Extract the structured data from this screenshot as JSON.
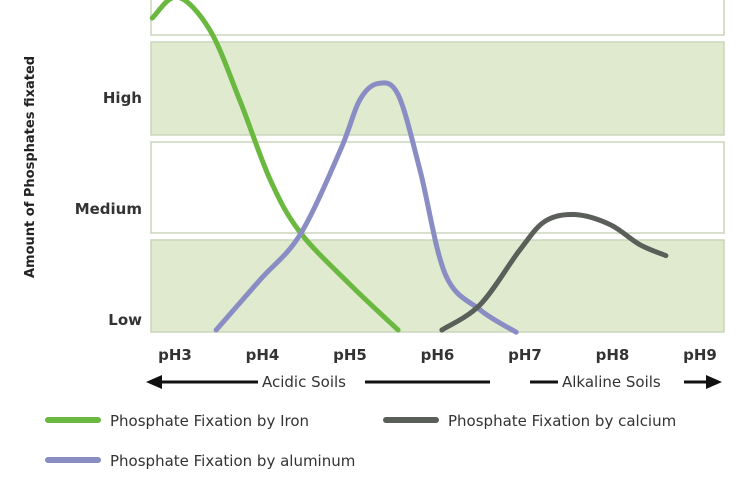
{
  "chart_data": {
    "type": "line",
    "title": "",
    "xlabel": "",
    "ylabel": "Amount of Phosphates fixated",
    "x_ticks": [
      "pH3",
      "pH4",
      "pH5",
      "pH6",
      "pH7",
      "pH8",
      "pH9"
    ],
    "x_tick_values": [
      3,
      4,
      5,
      6,
      7,
      8,
      9
    ],
    "y_ticks": [
      "Low",
      "Medium",
      "High"
    ],
    "y_tick_values": [
      1,
      2,
      3
    ],
    "xlim": [
      2.7,
      9.6
    ],
    "ylim": [
      0.8,
      4.0
    ],
    "bands": "alternating white / light green horizontal bands",
    "annotations": {
      "acidic": "Acidic Soils",
      "alkaline": "Alkaline Soils"
    },
    "legend_placement": "bottom",
    "series": [
      {
        "name": "Phosphate Fixation by Iron",
        "color": "#6ab83f",
        "x": [
          2.74,
          3.03,
          3.4,
          3.74,
          4.09,
          4.43,
          5.0,
          5.55
        ],
        "y": [
          3.72,
          3.91,
          3.61,
          2.98,
          2.26,
          1.79,
          1.32,
          0.91
        ]
      },
      {
        "name": "Phosphate Fixation by aluminum",
        "color": "#8a8cc4",
        "x": [
          3.47,
          3.97,
          4.43,
          4.89,
          5.11,
          5.32,
          5.55,
          5.8,
          6.09,
          6.49,
          6.9
        ],
        "y": [
          0.91,
          1.36,
          1.77,
          2.53,
          2.98,
          3.13,
          3.03,
          2.35,
          1.41,
          1.09,
          0.89
        ]
      },
      {
        "name": "Phosphate Fixation by calcium",
        "color": "#5a5f5a",
        "x": [
          6.05,
          6.49,
          6.94,
          7.23,
          7.57,
          7.97,
          8.31,
          8.61
        ],
        "y": [
          0.91,
          1.14,
          1.63,
          1.89,
          1.95,
          1.86,
          1.68,
          1.58
        ]
      }
    ]
  },
  "colors": {
    "band": "#dfeacf",
    "band_border": "#c9d6bb",
    "axis_text": "#333333"
  }
}
